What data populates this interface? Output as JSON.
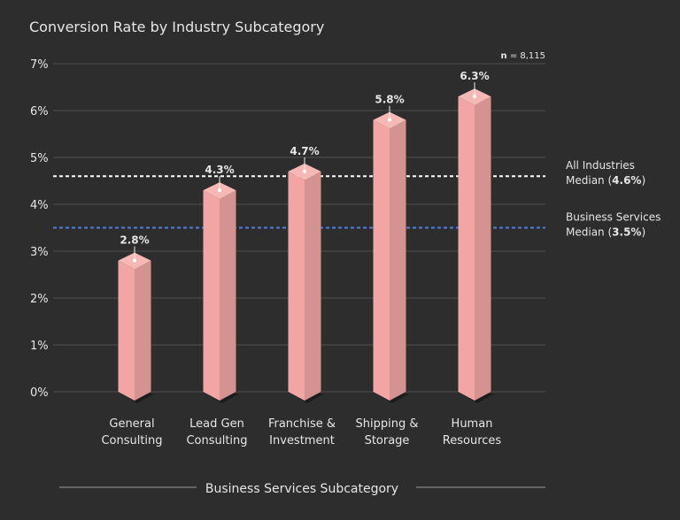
{
  "chart_data": {
    "type": "bar",
    "title": "Conversion Rate by Industry Subcategory",
    "xlabel": "Business Services Subcategory",
    "ylabel": "",
    "ylim": [
      0,
      7
    ],
    "yticks": [
      "0%",
      "1%",
      "2%",
      "3%",
      "4%",
      "5%",
      "6%",
      "7%"
    ],
    "grid": true,
    "sample_size": {
      "label": "n",
      "value": "= 8,115"
    },
    "categories": [
      [
        "General",
        "Consulting"
      ],
      [
        "Lead Gen",
        "Consulting"
      ],
      [
        "Franchise &",
        "Investment"
      ],
      [
        "Shipping &",
        "Storage"
      ],
      [
        "Human",
        "Resources"
      ]
    ],
    "values": [
      2.8,
      4.3,
      4.7,
      5.8,
      6.3
    ],
    "data_labels": [
      "2.8%",
      "4.3%",
      "4.7%",
      "5.8%",
      "6.3%"
    ],
    "reference_lines": [
      {
        "value": 4.6,
        "line1": "All Industries",
        "line2_prefix": "Median (",
        "line2_value": "4.6%",
        "line2_suffix": ")",
        "color": "#ffffff",
        "style": "dotted"
      },
      {
        "value": 3.5,
        "line1": "Business Services",
        "line2_prefix": "Median (",
        "line2_value": "3.5%",
        "line2_suffix": ")",
        "color": "#4f7fe0",
        "style": "dotted"
      }
    ],
    "colors": {
      "bar_front": "#f2a5a3",
      "bar_side": "#d49290",
      "bar_top": "#f6b8b5",
      "background": "#2d2d2d",
      "grid": "#444444"
    }
  }
}
